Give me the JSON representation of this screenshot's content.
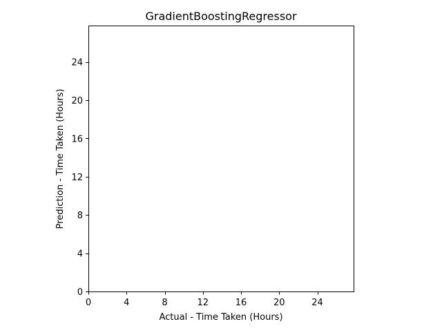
{
  "chart_data": {
    "type": "scatter",
    "title": "GradientBoostingRegressor",
    "xlabel": "Actual - Time Taken (Hours)",
    "ylabel": "Prediction - Time Taken (Hours)",
    "xlim": [
      0,
      27.8
    ],
    "ylim": [
      0,
      27.8
    ],
    "xticks": [
      0,
      4,
      8,
      12,
      16,
      20,
      24
    ],
    "yticks": [
      0,
      4,
      8,
      12,
      16,
      20,
      24
    ],
    "series": [],
    "grid": false
  }
}
